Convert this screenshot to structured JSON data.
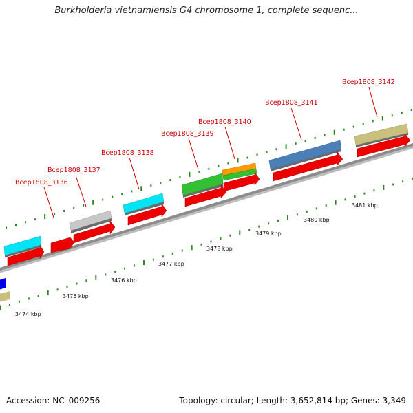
{
  "title": "Burkholderia vietnamiensis G4 chromosome 1, complete sequenc...",
  "accession": "Accession: NC_009256",
  "summary": "Topology: circular; Length: 3,652,814 bp; Genes: 3,349",
  "colors": {
    "label": "#cc0000",
    "tick": "#2a8a1e",
    "backbone": "#8c8c8c",
    "cds": "#ee0000",
    "cyan": "#00e5f5",
    "silver": "#c0c0c0",
    "green": "#33c033",
    "orange": "#ff9900",
    "steelblue": "#4a7fb8",
    "khaki": "#c8c07c",
    "blue": "#0000ee"
  },
  "genes": [
    {
      "label": "Bcep1808_3136"
    },
    {
      "label": "Bcep1808_3137"
    },
    {
      "label": "Bcep1808_3138"
    },
    {
      "label": "Bcep1808_3139"
    },
    {
      "label": "Bcep1808_3140"
    },
    {
      "label": "Bcep1808_3141"
    },
    {
      "label": "Bcep1808_3142"
    }
  ],
  "scale": [
    {
      "label": "3474 kbp"
    },
    {
      "label": "3475 kbp"
    },
    {
      "label": "3476 kbp"
    },
    {
      "label": "3477 kbp"
    },
    {
      "label": "3478 kbp"
    },
    {
      "label": "3479 kbp"
    },
    {
      "label": "3480 kbp"
    },
    {
      "label": "3481 kbp"
    }
  ]
}
